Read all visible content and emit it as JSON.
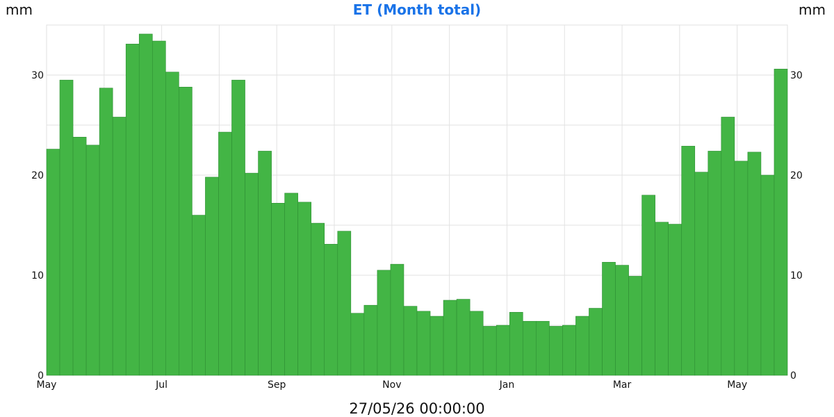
{
  "header": {
    "title": "ET (Month total)",
    "unit_left": "mm",
    "unit_right": "mm"
  },
  "footer": {
    "timestamp": "27/05/26 00:00:00"
  },
  "colors": {
    "bar_fill": "#43b545",
    "bar_stroke": "#2e8f33",
    "title": "#1a73e8",
    "grid": "#e2e2e2"
  },
  "chart_data": {
    "type": "bar",
    "title": "ET (Month total)",
    "ylabel": "mm",
    "ylim": [
      0,
      35
    ],
    "yticks": [
      0,
      10,
      20,
      30
    ],
    "xtick_labels": [
      "May",
      "Jul",
      "Sep",
      "Nov",
      "Jan",
      "Mar",
      "May"
    ],
    "grid": true,
    "values": [
      22.6,
      29.5,
      23.8,
      23.0,
      28.7,
      25.8,
      33.1,
      34.1,
      33.4,
      30.3,
      28.8,
      16.0,
      19.8,
      24.3,
      29.5,
      20.2,
      22.4,
      17.2,
      18.2,
      17.3,
      15.2,
      13.1,
      14.4,
      6.2,
      7.0,
      10.5,
      11.1,
      6.9,
      6.4,
      5.9,
      7.5,
      7.6,
      6.4,
      4.9,
      5.0,
      6.3,
      5.4,
      5.4,
      4.9,
      5.0,
      5.9,
      6.7,
      11.3,
      11.0,
      9.9,
      18.0,
      15.3,
      15.1,
      22.9,
      20.3,
      22.4,
      25.8,
      21.4,
      22.3,
      20.0,
      30.6
    ]
  }
}
